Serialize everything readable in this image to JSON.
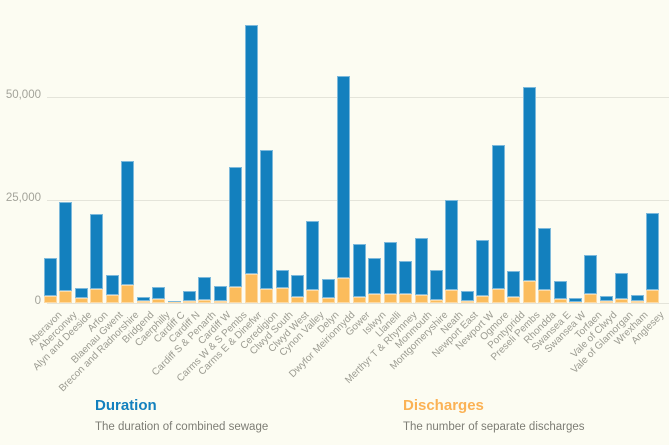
{
  "background_color": "#fcfcf2",
  "chart_data": {
    "type": "bar",
    "stacked": true,
    "title": "",
    "xlabel": "",
    "ylabel": "",
    "ylim": [
      0,
      70000
    ],
    "grid": true,
    "legend_position": "bottom",
    "y_ticks": [
      {
        "label": "50,000",
        "value": 50000
      },
      {
        "label": "25,000",
        "value": 25000
      },
      {
        "label": "0",
        "value": 0
      }
    ],
    "categories": [
      "Aberavon",
      "Aberconwy",
      "Alyn and Deeside",
      "Arfon",
      "Blaenau Gwent",
      "Brecon and Radnorshire",
      "Bridgend",
      "Caerphilly",
      "Cardiff C",
      "Cardiff N",
      "Cardiff S & Penarth",
      "Cardiff W",
      "Carms W & S Pembs",
      "Carms E & Dinefwr",
      "Ceredigion",
      "Clwyd South",
      "Clwyd West",
      "Cynon Valley",
      "Delyn",
      "Dwyfor Meirionnydd",
      "Gower",
      "Islwyn",
      "Llanelli",
      "Merthyr T & Rhymney",
      "Monmouth",
      "Montgomeryshire",
      "Neath",
      "Newport East",
      "Newport W",
      "Ogmore",
      "Pontypridd",
      "Preseli Pembs",
      "Rhondda",
      "Swansea E",
      "Swansea W",
      "Torfaen",
      "Vale of Clwyd",
      "Vale of Glamorgan",
      "Wrexham",
      "Anglesey"
    ],
    "series": [
      {
        "name": "Duration",
        "color": "#1380be",
        "values": [
          9400,
          21700,
          2500,
          18100,
          4800,
          30100,
          1100,
          2900,
          300,
          2600,
          5500,
          3800,
          29000,
          60400,
          33600,
          4400,
          5250,
          16850,
          4600,
          49100,
          13000,
          8700,
          12400,
          7800,
          14000,
          7100,
          21800,
          2400,
          13400,
          34800,
          6250,
          47250,
          15000,
          4250,
          1000,
          9400,
          1200,
          6300,
          1500,
          18700
        ]
      },
      {
        "name": "Discharges",
        "color": "#fbbc5c",
        "values": [
          1600,
          2800,
          1200,
          3400,
          1900,
          4300,
          400,
          1000,
          250,
          400,
          700,
          400,
          4000,
          7000,
          3500,
          3700,
          1450,
          3050,
          1300,
          6000,
          1400,
          2300,
          2300,
          2300,
          1900,
          800,
          3200,
          500,
          1800,
          3500,
          1450,
          5250,
          3100,
          1050,
          300,
          2300,
          400,
          950,
          400,
          3100
        ]
      }
    ]
  },
  "legend": {
    "items": [
      {
        "title": "Duration",
        "description": "The duration of combined sewage",
        "color": "#1380be"
      },
      {
        "title": "Discharges",
        "description": "The number of separate discharges",
        "color": "#fbb255"
      }
    ]
  }
}
